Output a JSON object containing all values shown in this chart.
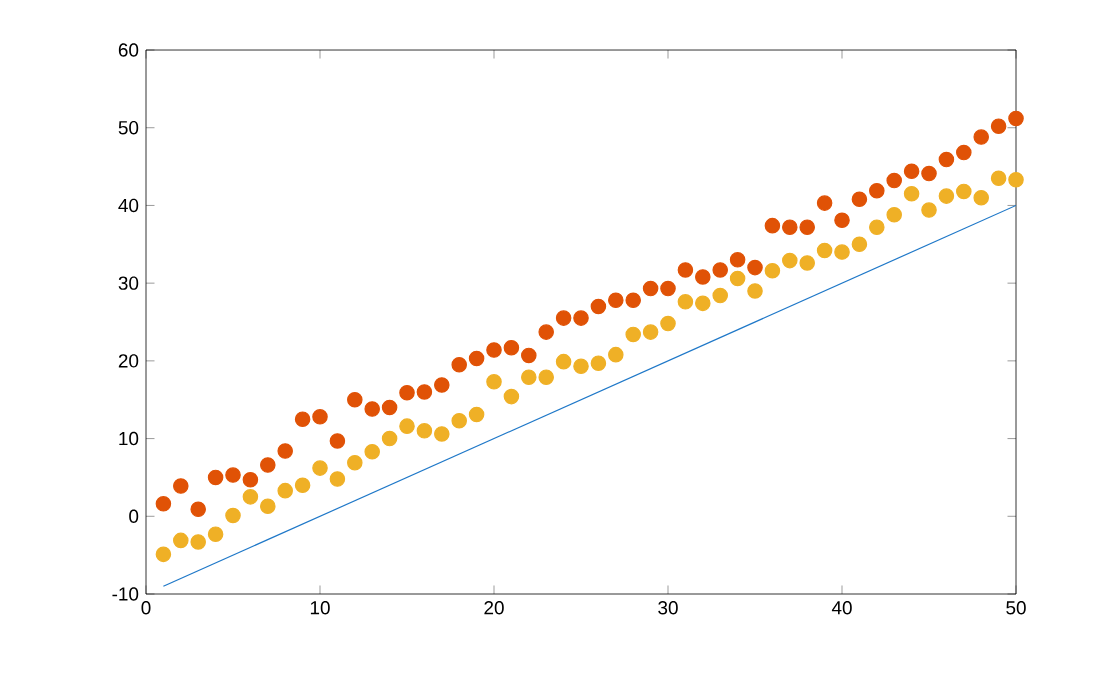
{
  "chart_data": {
    "type": "scatter",
    "xlim": [
      0,
      50
    ],
    "ylim": [
      -10,
      60
    ],
    "xticks": [
      0,
      10,
      20,
      30,
      40,
      50
    ],
    "yticks": [
      -10,
      0,
      10,
      20,
      30,
      40,
      50,
      60
    ],
    "grid": false,
    "series": [
      {
        "color": "#e05206",
        "marker": "circle",
        "x": [
          1,
          2,
          3,
          4,
          5,
          6,
          7,
          8,
          9,
          10,
          11,
          12,
          13,
          14,
          15,
          16,
          17,
          18,
          19,
          20,
          21,
          22,
          23,
          24,
          25,
          26,
          27,
          28,
          29,
          30,
          31,
          32,
          33,
          34,
          35,
          36,
          37,
          38,
          39,
          40,
          41,
          42,
          43,
          44,
          45,
          46,
          47,
          48,
          49,
          50
        ],
        "values": [
          1.6,
          3.9,
          0.9,
          5,
          5.3,
          4.7,
          6.6,
          8.4,
          12.5,
          12.8,
          9.7,
          15,
          13.8,
          14,
          15.9,
          16,
          16.9,
          19.5,
          20.3,
          21.4,
          21.7,
          20.7,
          23.7,
          25.5,
          25.5,
          27,
          27.8,
          27.8,
          29.3,
          29.3,
          31.7,
          30.8,
          31.7,
          33,
          32,
          37.4,
          37.2,
          37.2,
          40.3,
          38.1,
          40.8,
          41.9,
          43.2,
          44.4,
          44.1,
          45.9,
          46.8,
          48.8,
          50.2,
          51.2
        ]
      },
      {
        "color": "#efb026",
        "marker": "circle",
        "x": [
          1,
          2,
          3,
          4,
          5,
          6,
          7,
          8,
          9,
          10,
          11,
          12,
          13,
          14,
          15,
          16,
          17,
          18,
          19,
          20,
          21,
          22,
          23,
          24,
          25,
          26,
          27,
          28,
          29,
          30,
          31,
          32,
          33,
          34,
          35,
          36,
          37,
          38,
          39,
          40,
          41,
          42,
          43,
          44,
          45,
          46,
          47,
          48,
          49,
          50
        ],
        "values": [
          -4.9,
          -3.1,
          -3.3,
          -2.3,
          0.1,
          2.5,
          1.3,
          3.3,
          4,
          6.2,
          4.8,
          6.9,
          8.3,
          10,
          11.6,
          11,
          10.6,
          12.3,
          13.1,
          17.3,
          15.4,
          17.9,
          17.9,
          19.9,
          19.3,
          19.7,
          20.8,
          23.4,
          23.7,
          24.8,
          27.6,
          27.4,
          28.4,
          30.6,
          29,
          31.6,
          32.9,
          32.6,
          34.2,
          34,
          35,
          37.2,
          38.8,
          41.5,
          39.4,
          41.2,
          41.8,
          41,
          43.5,
          43.3
        ]
      },
      {
        "type": "line",
        "color": "#1f78c8",
        "marker": "none",
        "x": [
          1,
          50
        ],
        "values": [
          -9,
          40
        ]
      }
    ]
  }
}
